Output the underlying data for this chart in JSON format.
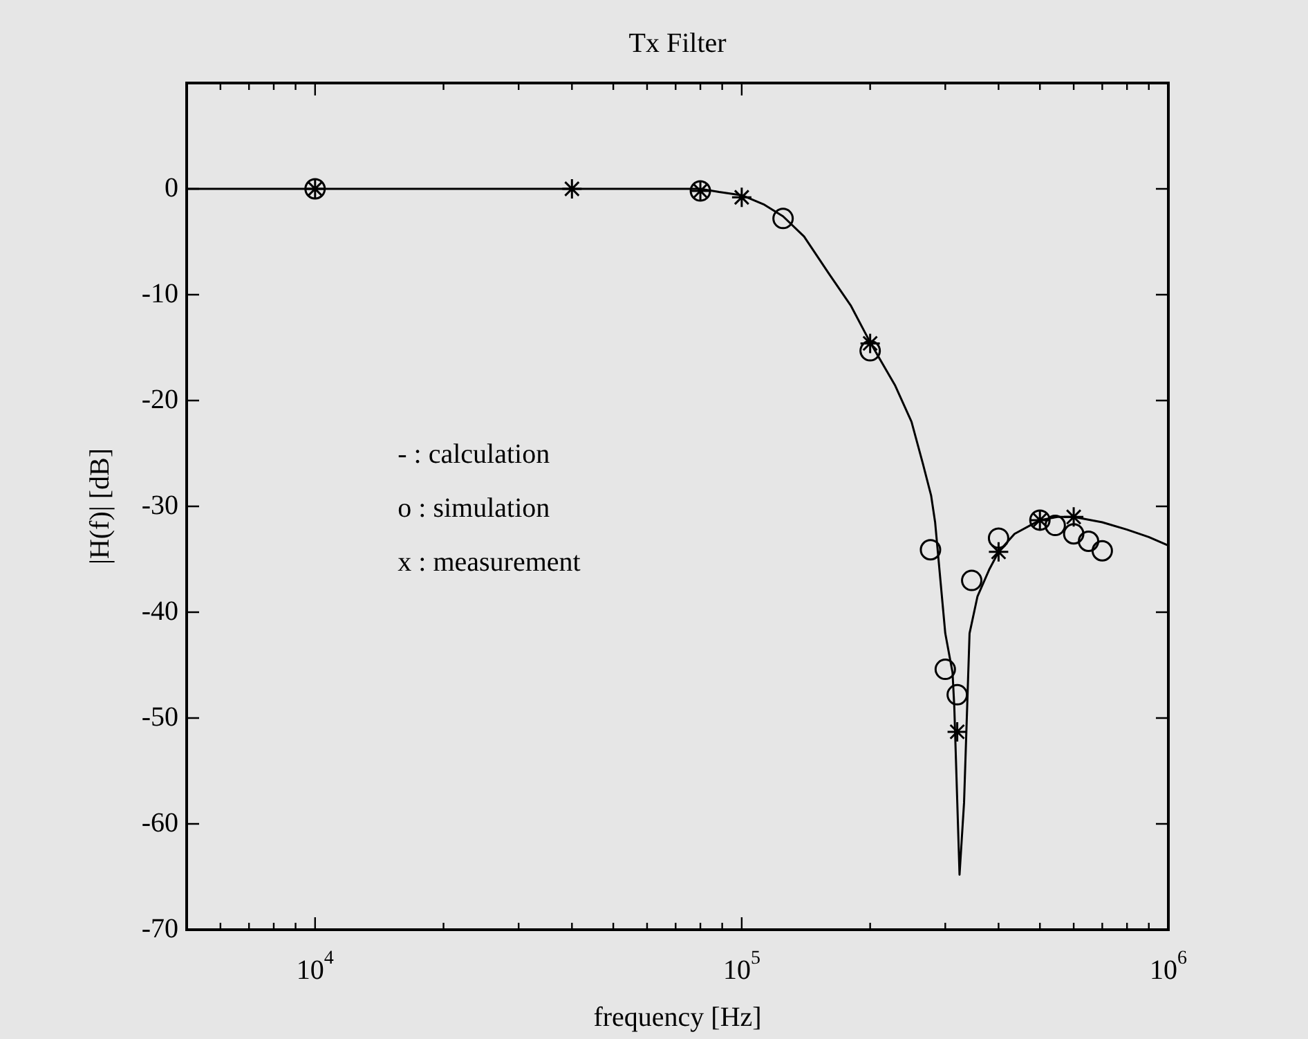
{
  "chart_data": {
    "type": "line",
    "title": "Tx Filter",
    "xlabel": "frequency [Hz]",
    "ylabel": "|H(f)| [dB]",
    "log": "x",
    "xlim": [
      5000,
      1000000
    ],
    "ylim": [
      -70,
      10
    ],
    "xticks": [
      {
        "value": 6000,
        "label": null
      },
      {
        "value": 7000,
        "label": null
      },
      {
        "value": 8000,
        "label": null
      },
      {
        "value": 9000,
        "label": null
      },
      {
        "value": 10000,
        "label": "10$^{4}$"
      },
      {
        "value": 20000,
        "label": null
      },
      {
        "value": 30000,
        "label": null
      },
      {
        "value": 40000,
        "label": null
      },
      {
        "value": 50000,
        "label": null
      },
      {
        "value": 60000,
        "label": null
      },
      {
        "value": 70000,
        "label": null
      },
      {
        "value": 80000,
        "label": null
      },
      {
        "value": 90000,
        "label": null
      },
      {
        "value": 100000,
        "label": "10$^{5}$"
      },
      {
        "value": 200000,
        "label": null
      },
      {
        "value": 300000,
        "label": null
      },
      {
        "value": 400000,
        "label": null
      },
      {
        "value": 500000,
        "label": null
      },
      {
        "value": 600000,
        "label": null
      },
      {
        "value": 700000,
        "label": null
      },
      {
        "value": 800000,
        "label": null
      },
      {
        "value": 900000,
        "label": null
      },
      {
        "value": 1000000,
        "label": "10$^{6}$"
      }
    ],
    "yticks": [
      0,
      -10,
      -20,
      -30,
      -40,
      -50,
      -60,
      -70
    ],
    "annotations": [
      "- : calculation",
      "o : simulation",
      "x : measurement"
    ],
    "series": [
      {
        "color": "#000000",
        "marker": "none",
        "line_style": "solid",
        "x": [
          5000,
          80000,
          88500,
          100000,
          113000,
          125000,
          140000,
          160000,
          180000,
          200000,
          229000,
          250000,
          266000,
          278000,
          284000,
          300000,
          312000,
          315000,
          324000,
          332000,
          342000,
          357000,
          380000,
          400000,
          436000,
          500000,
          550000,
          600000,
          700000,
          800000,
          900000,
          1000000
        ],
        "values": [
          0,
          0,
          -0.3,
          -0.6,
          -1.5,
          -2.6,
          -4.5,
          -8,
          -11,
          -14.5,
          -18.6,
          -22,
          -26,
          -29,
          -31.5,
          -42,
          -45.7,
          -49,
          -64.8,
          -58,
          -42,
          -38.5,
          -36,
          -34.3,
          -32.6,
          -31.3,
          -31,
          -31,
          -31.5,
          -32.2,
          -32.9,
          -33.7
        ]
      },
      {
        "type": "scatter",
        "color": "#000000",
        "marker": "circle",
        "x": [
          10000,
          80000,
          125000,
          200000,
          277000,
          300000,
          320000,
          346000,
          400000,
          500000,
          543000,
          600000,
          650000,
          700000
        ],
        "values": [
          0,
          -0.2,
          -2.8,
          -15.3,
          -34.1,
          -45.4,
          -47.8,
          -37,
          -33,
          -31.3,
          -31.8,
          -32.6,
          -33.3,
          -34.2
        ]
      },
      {
        "type": "scatter",
        "color": "#000000",
        "marker": "cross",
        "x": [
          10000,
          40000,
          80000,
          100000,
          200000,
          320000,
          400000,
          500000,
          600000
        ],
        "values": [
          0,
          0,
          -0.2,
          -0.8,
          -14.6,
          -51.3,
          -34.3,
          -31.3,
          -31
        ]
      }
    ]
  }
}
